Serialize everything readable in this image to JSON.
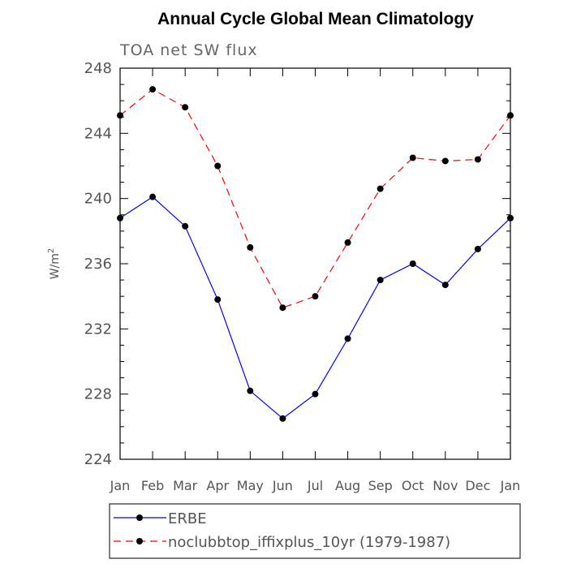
{
  "chart_data": {
    "type": "line",
    "title": "Annual Cycle Global Mean Climatology",
    "subtitle": "TOA net SW flux",
    "ylabel": "W/m",
    "ylabel_sup": "2",
    "xlabel": "",
    "categories": [
      "Jan",
      "Feb",
      "Mar",
      "Apr",
      "May",
      "Jun",
      "Jul",
      "Aug",
      "Sep",
      "Oct",
      "Nov",
      "Dec",
      "Jan"
    ],
    "ylim": [
      224,
      248
    ],
    "yticks": [
      224,
      228,
      232,
      236,
      240,
      244,
      248
    ],
    "ytick_labels": [
      "224",
      "228",
      "232",
      "236",
      "240",
      "244",
      "248"
    ],
    "series": [
      {
        "name": "ERBE",
        "color": "#0000ff",
        "dash": "solid",
        "values": [
          238.8,
          240.1,
          238.3,
          233.8,
          228.2,
          226.5,
          228.0,
          231.4,
          235.0,
          236.0,
          234.7,
          236.9,
          238.8
        ]
      },
      {
        "name": "noclubbtop_iffixplus_10yr (1979-1987)",
        "color": "#ff0000",
        "dash": "dashed",
        "values": [
          245.1,
          246.7,
          245.6,
          242.0,
          237.0,
          233.3,
          234.0,
          237.3,
          240.6,
          242.5,
          242.3,
          242.4,
          245.1
        ]
      }
    ],
    "legend_position": "bottom-left",
    "grid": false
  }
}
